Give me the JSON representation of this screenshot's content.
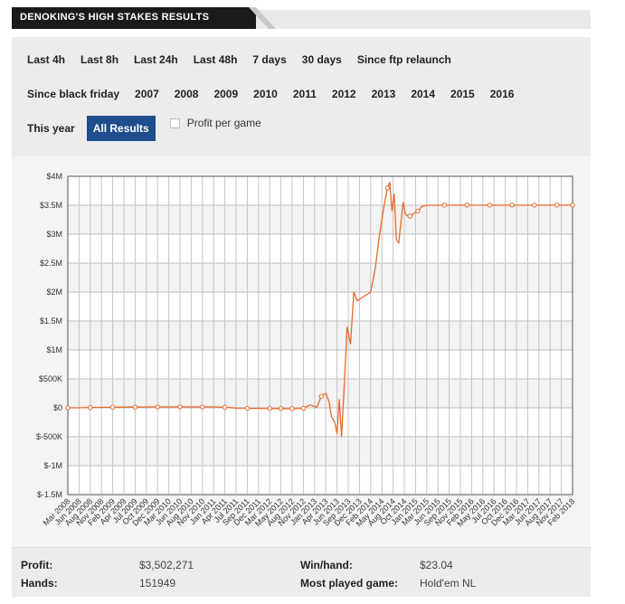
{
  "header": {
    "title": "DENOKING'S HIGH STAKES RESULTS"
  },
  "filters": {
    "row1": [
      "Last 4h",
      "Last 8h",
      "Last 24h",
      "Last 48h",
      "7 days",
      "30 days",
      "Since ftp relaunch"
    ],
    "row2": [
      "Since black friday",
      "2007",
      "2008",
      "2009",
      "2010",
      "2011",
      "2012",
      "2013",
      "2014",
      "2015",
      "2016"
    ],
    "row3_this_year": "This year",
    "row3_all_results": "All Results",
    "profit_per_game_label": "Profit per game",
    "profit_per_game_checked": false
  },
  "stats": {
    "profit_label": "Profit:",
    "profit_value": "$3,502,271",
    "hands_label": "Hands:",
    "hands_value": "151949",
    "winhand_label": "Win/hand:",
    "winhand_value": "$23.04",
    "most_played_label": "Most played game:",
    "most_played_value": "Hold'em NL"
  },
  "colors": {
    "line": "#e8692a",
    "active_button": "#1f4e8c"
  },
  "chart_data": {
    "type": "line",
    "title": "",
    "xlabel": "",
    "ylabel": "",
    "ylim": [
      -1500000,
      4000000
    ],
    "yticks": [
      {
        "value": 4000000,
        "label": "$4M"
      },
      {
        "value": 3500000,
        "label": "$3.5M"
      },
      {
        "value": 3000000,
        "label": "$3M"
      },
      {
        "value": 2500000,
        "label": "$2.5M"
      },
      {
        "value": 2000000,
        "label": "$2M"
      },
      {
        "value": 1500000,
        "label": "$1.5M"
      },
      {
        "value": 1000000,
        "label": "$1M"
      },
      {
        "value": 500000,
        "label": "$500K"
      },
      {
        "value": 0,
        "label": "$0"
      },
      {
        "value": -500000,
        "label": "$-500K"
      },
      {
        "value": -1000000,
        "label": "$-1M"
      },
      {
        "value": -1500000,
        "label": "$-1.5M"
      }
    ],
    "categories": [
      "Mar 2008",
      "Jun 2008",
      "Aug 2008",
      "Nov 2008",
      "Feb 2009",
      "Apr 2009",
      "Jul 2009",
      "Oct 2009",
      "Dec 2009",
      "Mar 2010",
      "Jun 2010",
      "Aug 2010",
      "Nov 2010",
      "Jan 2011",
      "Apr 2011",
      "Jul 2011",
      "Sep 2011",
      "Dec 2011",
      "Mar 2012",
      "May 2012",
      "Aug 2012",
      "Nov 2012",
      "Jan 2013",
      "Apr 2013",
      "Jun 2013",
      "Sep 2013",
      "Dec 2013",
      "Feb 2014",
      "May 2014",
      "Aug 2014",
      "Oct 2014",
      "Jan 2015",
      "Mar 2015",
      "Jun 2015",
      "Sep 2015",
      "Nov 2015",
      "Feb 2016",
      "May 2016",
      "Jul 2016",
      "Oct 2016",
      "Dec 2016",
      "Mar 2017",
      "Jun 2017",
      "Aug 2017",
      "Nov 2017",
      "Feb 2018"
    ],
    "series": [
      {
        "name": "",
        "points": [
          [
            0,
            0
          ],
          [
            1,
            0
          ],
          [
            2,
            5000
          ],
          [
            3,
            8000
          ],
          [
            4,
            10000
          ],
          [
            5,
            12000
          ],
          [
            6,
            12000
          ],
          [
            7,
            14000
          ],
          [
            8,
            15000
          ],
          [
            9,
            15000
          ],
          [
            10,
            15000
          ],
          [
            11,
            15000
          ],
          [
            12,
            15000
          ],
          [
            13,
            15000
          ],
          [
            14,
            10000
          ],
          [
            15,
            -5000
          ],
          [
            16,
            -10000
          ],
          [
            17,
            -10000
          ],
          [
            18,
            -12000
          ],
          [
            19,
            -12000
          ],
          [
            20,
            -15000
          ],
          [
            21,
            -10000
          ],
          [
            21.6,
            50000
          ],
          [
            22.2,
            10000
          ],
          [
            22.6,
            200000
          ],
          [
            23.0,
            250000
          ],
          [
            23.3,
            100000
          ],
          [
            23.5,
            -150000
          ],
          [
            23.8,
            -250000
          ],
          [
            24.0,
            -450000
          ],
          [
            24.2,
            150000
          ],
          [
            24.4,
            -500000
          ],
          [
            24.6,
            200000
          ],
          [
            24.9,
            1400000
          ],
          [
            25.2,
            1100000
          ],
          [
            25.5,
            2000000
          ],
          [
            25.8,
            1850000
          ],
          [
            26.2,
            1900000
          ],
          [
            26.6,
            1950000
          ],
          [
            27.0,
            2000000
          ],
          [
            27.4,
            2400000
          ],
          [
            27.8,
            3000000
          ],
          [
            28.2,
            3500000
          ],
          [
            28.5,
            3800000
          ],
          [
            28.7,
            3900000
          ],
          [
            28.9,
            3400000
          ],
          [
            29.1,
            3700000
          ],
          [
            29.3,
            2900000
          ],
          [
            29.5,
            2850000
          ],
          [
            29.7,
            3200000
          ],
          [
            29.9,
            3550000
          ],
          [
            30.1,
            3350000
          ],
          [
            30.4,
            3300000
          ],
          [
            30.8,
            3350000
          ],
          [
            31.2,
            3400000
          ],
          [
            31.6,
            3480000
          ],
          [
            32,
            3500000
          ],
          [
            34,
            3502271
          ],
          [
            36,
            3502271
          ],
          [
            38,
            3502271
          ],
          [
            40,
            3502271
          ],
          [
            42,
            3502271
          ],
          [
            44,
            3502271
          ],
          [
            45,
            3502271
          ]
        ],
        "markers_at_index": [
          0,
          1,
          2,
          3,
          4,
          5,
          6,
          7,
          8,
          9,
          10,
          11,
          12,
          13,
          15,
          16,
          17,
          18,
          19,
          20,
          21,
          45,
          46,
          47,
          48,
          49,
          52,
          53,
          56,
          57,
          58,
          59,
          60,
          61,
          62
        ]
      }
    ],
    "grid": true,
    "legend": "none"
  }
}
